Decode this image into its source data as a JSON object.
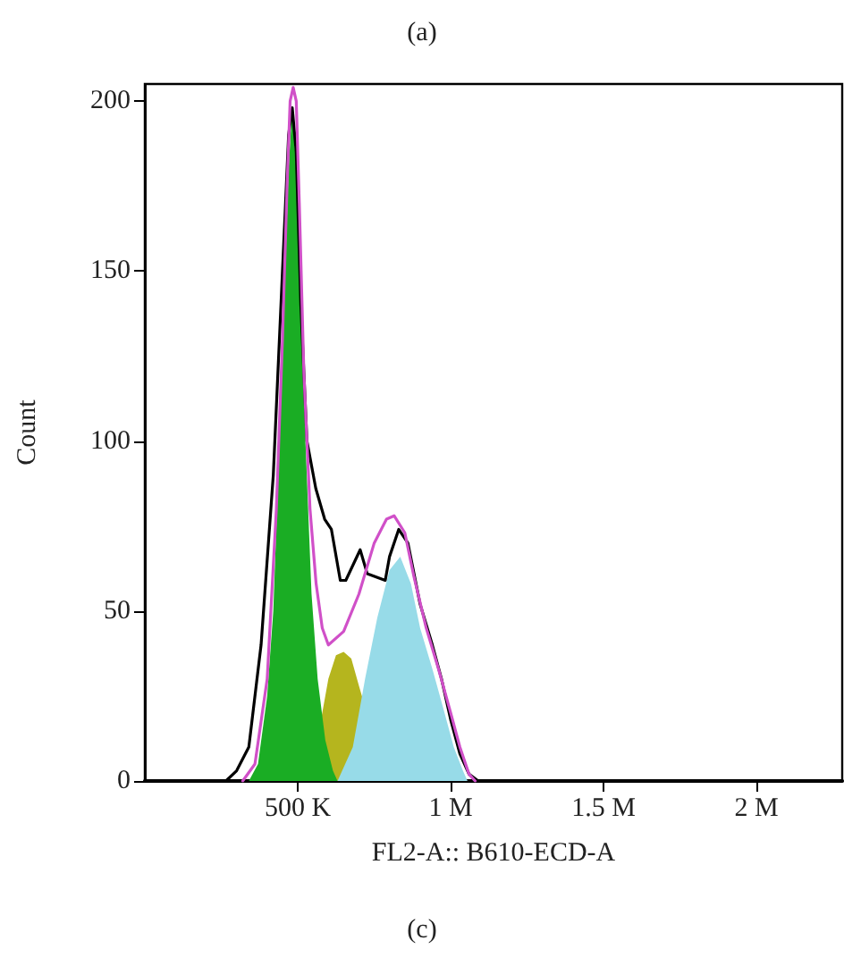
{
  "chart_data": {
    "type": "area",
    "title": "(a)",
    "xlabel": "FL2-A:: B610-ECD-A",
    "ylabel": "Count",
    "annotations": [
      "(c)"
    ],
    "xlim": [
      0,
      2280000
    ],
    "xticks": [
      {
        "value": 500000,
        "label": "500 K"
      },
      {
        "value": 1000000,
        "label": "1 M"
      },
      {
        "value": 1500000,
        "label": "1.5 M"
      },
      {
        "value": 2000000,
        "label": "2 M"
      }
    ],
    "ylim": [
      0,
      205
    ],
    "yticks": [
      0,
      50,
      100,
      150,
      200
    ],
    "grid": false,
    "marker": "none",
    "series": [
      {
        "type": "area",
        "color": "#b5b51e",
        "x": [
          540000,
          600000,
          625000,
          650000,
          675000,
          700000,
          790000
        ],
        "values": [
          0,
          30,
          37,
          38,
          36,
          28,
          0
        ]
      },
      {
        "type": "area",
        "color": "#1aad24",
        "x": [
          340000,
          370000,
          400000,
          420000,
          440000,
          455000,
          470000,
          482000,
          495000,
          510000,
          525000,
          545000,
          565000,
          590000,
          615000,
          630000
        ],
        "values": [
          0,
          5,
          25,
          50,
          100,
          140,
          180,
          198,
          180,
          140,
          100,
          55,
          30,
          12,
          3,
          0
        ]
      },
      {
        "type": "area",
        "color": "#97dbe8",
        "x": [
          630000,
          680000,
          720000,
          760000,
          800000,
          835000,
          870000,
          900000,
          940000,
          980000,
          1010000,
          1040000,
          1055000
        ],
        "values": [
          0,
          10,
          30,
          48,
          62,
          66,
          58,
          45,
          33,
          20,
          10,
          3,
          0
        ]
      },
      {
        "type": "line",
        "color": "#000000",
        "line_style": "solid",
        "x": [
          0,
          265000,
          300000,
          340000,
          380000,
          420000,
          450000,
          470000,
          482000,
          495000,
          510000,
          530000,
          559000,
          588000,
          610000,
          639000,
          657000,
          704000,
          727000,
          786000,
          800000,
          830000,
          860000,
          900000,
          940000,
          970000,
          1000000,
          1030000,
          1060000,
          1090000,
          2280000
        ],
        "values": [
          0,
          0,
          3,
          10,
          40,
          90,
          150,
          190,
          198,
          185,
          140,
          100,
          86,
          77,
          74,
          59,
          59,
          68,
          61,
          59,
          66,
          74,
          70,
          52,
          40,
          30,
          18,
          8,
          2,
          0,
          0
        ]
      },
      {
        "type": "line",
        "color": "#d050c8",
        "line_style": "solid",
        "x": [
          320000,
          360000,
          400000,
          430000,
          450000,
          465000,
          475000,
          485000,
          495000,
          505000,
          520000,
          540000,
          560000,
          580000,
          600000,
          650000,
          700000,
          750000,
          790000,
          815000,
          850000,
          880000,
          920000,
          960000,
          1000000,
          1030000,
          1060000,
          1080000
        ],
        "values": [
          0,
          5,
          30,
          80,
          130,
          175,
          200,
          204,
          200,
          170,
          120,
          80,
          58,
          45,
          40,
          44,
          55,
          70,
          77,
          78,
          73,
          60,
          45,
          33,
          20,
          10,
          2,
          0
        ]
      }
    ]
  }
}
